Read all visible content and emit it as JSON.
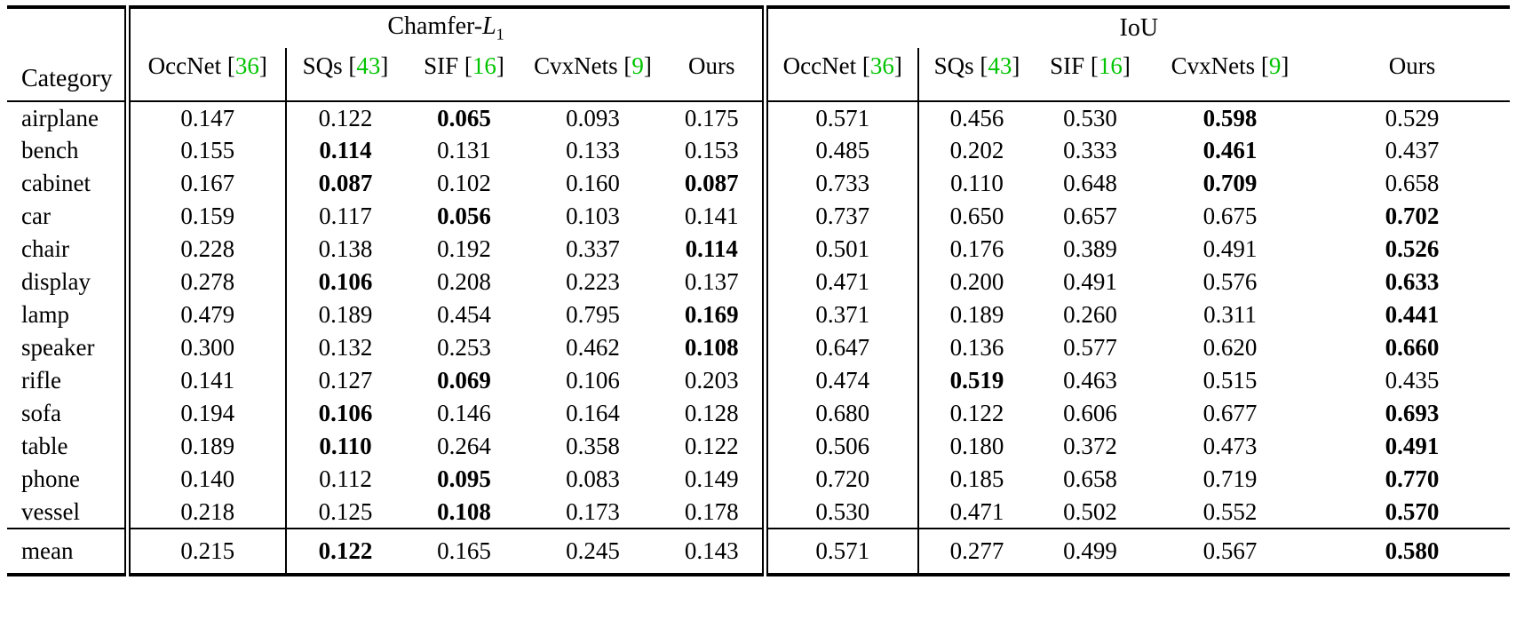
{
  "colors": {
    "cite_green": "#00C400"
  },
  "table": {
    "category_label": "Category",
    "group1": {
      "prefix": "Chamfer-",
      "var": "L",
      "sub": "1"
    },
    "group2": {
      "label": "IoU"
    },
    "methods": [
      {
        "name": "OccNet",
        "cite": "36"
      },
      {
        "name": "SQs",
        "cite": "43"
      },
      {
        "name": "SIF",
        "cite": "16"
      },
      {
        "name": "CvxNets",
        "cite": "9"
      },
      {
        "name": "Ours",
        "cite": ""
      }
    ],
    "rows": [
      {
        "category": "airplane",
        "cells": [
          "0.147",
          "0.122",
          "0.065",
          "0.093",
          "0.175",
          "0.571",
          "0.456",
          "0.530",
          "0.598",
          "0.529"
        ],
        "bold": [
          2,
          8
        ]
      },
      {
        "category": "bench",
        "cells": [
          "0.155",
          "0.114",
          "0.131",
          "0.133",
          "0.153",
          "0.485",
          "0.202",
          "0.333",
          "0.461",
          "0.437"
        ],
        "bold": [
          1,
          8
        ]
      },
      {
        "category": "cabinet",
        "cells": [
          "0.167",
          "0.087",
          "0.102",
          "0.160",
          "0.087",
          "0.733",
          "0.110",
          "0.648",
          "0.709",
          "0.658"
        ],
        "bold": [
          1,
          4,
          8
        ]
      },
      {
        "category": "car",
        "cells": [
          "0.159",
          "0.117",
          "0.056",
          "0.103",
          "0.141",
          "0.737",
          "0.650",
          "0.657",
          "0.675",
          "0.702"
        ],
        "bold": [
          2,
          9
        ]
      },
      {
        "category": "chair",
        "cells": [
          "0.228",
          "0.138",
          "0.192",
          "0.337",
          "0.114",
          "0.501",
          "0.176",
          "0.389",
          "0.491",
          "0.526"
        ],
        "bold": [
          4,
          9
        ]
      },
      {
        "category": "display",
        "cells": [
          "0.278",
          "0.106",
          "0.208",
          "0.223",
          "0.137",
          "0.471",
          "0.200",
          "0.491",
          "0.576",
          "0.633"
        ],
        "bold": [
          1,
          9
        ]
      },
      {
        "category": "lamp",
        "cells": [
          "0.479",
          "0.189",
          "0.454",
          "0.795",
          "0.169",
          "0.371",
          "0.189",
          "0.260",
          "0.311",
          "0.441"
        ],
        "bold": [
          4,
          9
        ]
      },
      {
        "category": "speaker",
        "cells": [
          "0.300",
          "0.132",
          "0.253",
          "0.462",
          "0.108",
          "0.647",
          "0.136",
          "0.577",
          "0.620",
          "0.660"
        ],
        "bold": [
          4,
          9
        ]
      },
      {
        "category": "rifle",
        "cells": [
          "0.141",
          "0.127",
          "0.069",
          "0.106",
          "0.203",
          "0.474",
          "0.519",
          "0.463",
          "0.515",
          "0.435"
        ],
        "bold": [
          2,
          6
        ]
      },
      {
        "category": "sofa",
        "cells": [
          "0.194",
          "0.106",
          "0.146",
          "0.164",
          "0.128",
          "0.680",
          "0.122",
          "0.606",
          "0.677",
          "0.693"
        ],
        "bold": [
          1,
          9
        ]
      },
      {
        "category": "table",
        "cells": [
          "0.189",
          "0.110",
          "0.264",
          "0.358",
          "0.122",
          "0.506",
          "0.180",
          "0.372",
          "0.473",
          "0.491"
        ],
        "bold": [
          1,
          9
        ]
      },
      {
        "category": "phone",
        "cells": [
          "0.140",
          "0.112",
          "0.095",
          "0.083",
          "0.149",
          "0.720",
          "0.185",
          "0.658",
          "0.719",
          "0.770"
        ],
        "bold": [
          2,
          9
        ]
      },
      {
        "category": "vessel",
        "cells": [
          "0.218",
          "0.125",
          "0.108",
          "0.173",
          "0.178",
          "0.530",
          "0.471",
          "0.502",
          "0.552",
          "0.570"
        ],
        "bold": [
          2,
          9
        ]
      }
    ],
    "mean": {
      "category": "mean",
      "cells": [
        "0.215",
        "0.122",
        "0.165",
        "0.245",
        "0.143",
        "0.571",
        "0.277",
        "0.499",
        "0.567",
        "0.580"
      ],
      "bold": [
        1,
        9
      ]
    }
  }
}
